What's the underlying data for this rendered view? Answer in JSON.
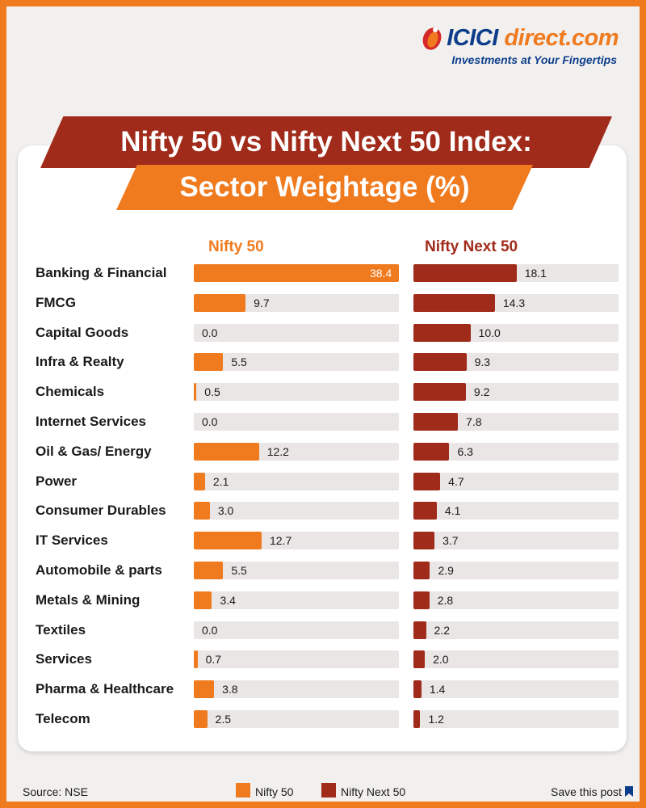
{
  "brand": {
    "name_main": "ICICI",
    "name_accent": "direct.com",
    "tagline": "Investments at Your Fingertips"
  },
  "title": {
    "line1": "Nifty 50 vs Nifty Next 50 Index:",
    "line2": "Sector Weightage (%)"
  },
  "colors": {
    "nifty50": "#f07a1e",
    "niftynext50": "#a02b1a",
    "track": "#e9e6e5"
  },
  "footer": {
    "source": "Source: NSE",
    "save": "Save this post",
    "legend": [
      "Nifty 50",
      "Nifty Next 50"
    ]
  },
  "chart_data": {
    "type": "bar",
    "orientation": "horizontal",
    "categories": [
      "Banking & Financial",
      "FMCG",
      "Capital Goods",
      "Infra & Realty",
      "Chemicals",
      "Internet Services",
      "Oil & Gas/ Energy",
      "Power",
      "Consumer Durables",
      "IT Services",
      "Automobile & parts",
      "Metals & Mining",
      "Textiles",
      "Services",
      "Pharma & Healthcare",
      "Telecom"
    ],
    "series": [
      {
        "name": "Nifty 50",
        "values": [
          38.4,
          9.7,
          0.0,
          5.5,
          0.5,
          0.0,
          12.2,
          2.1,
          3.0,
          12.7,
          5.5,
          3.4,
          0.0,
          0.7,
          3.8,
          2.5
        ]
      },
      {
        "name": "Nifty Next 50",
        "values": [
          18.1,
          14.3,
          10.0,
          9.3,
          9.2,
          7.8,
          6.3,
          4.7,
          4.1,
          3.7,
          2.9,
          2.8,
          2.2,
          2.0,
          1.4,
          1.2
        ]
      }
    ],
    "xlim": [
      0,
      38.4
    ],
    "grid": false,
    "legend": "bottom"
  }
}
